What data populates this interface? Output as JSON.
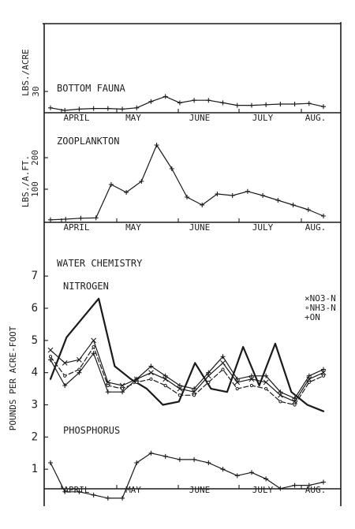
{
  "colors": {
    "ink": "#1a1a1a",
    "paper": "#ffffff"
  },
  "chart_data": [
    {
      "type": "line",
      "title": "BOTTOM FAUNA",
      "ylabel": "LBS./ACRE",
      "yticks": [
        30
      ],
      "ylim": [
        0,
        50
      ],
      "months": [
        "APRIL",
        "MAY",
        "JUNE",
        "JULY",
        "AUG."
      ],
      "x": [
        0,
        1,
        2,
        3,
        4,
        5,
        6,
        7,
        8,
        9,
        10,
        11,
        12,
        13,
        14,
        15,
        16,
        17,
        18,
        19
      ],
      "series": [
        {
          "values": [
            4,
            0,
            2,
            3,
            3,
            2,
            4,
            14,
            22,
            12,
            16,
            16,
            12,
            8,
            8,
            9,
            10,
            10,
            11,
            6
          ],
          "marker": "plus",
          "style": "solid"
        }
      ]
    },
    {
      "type": "line",
      "title": "ZOOPLANKTON",
      "ylabel": "LBS./A.FT.",
      "yticks": [
        100,
        200
      ],
      "ylim": [
        0,
        250
      ],
      "months": [
        "APRIL",
        "MAY",
        "JUNE",
        "JULY",
        "AUG."
      ],
      "x": [
        0,
        1,
        2,
        3,
        4,
        5,
        6,
        7,
        8,
        9,
        10,
        11,
        12,
        13,
        14,
        15,
        16,
        17,
        18
      ],
      "series": [
        {
          "values": [
            3,
            5,
            8,
            9,
            115,
            90,
            125,
            240,
            165,
            75,
            50,
            85,
            80,
            93,
            80,
            65,
            50,
            35,
            15
          ],
          "marker": "plus",
          "style": "solid"
        }
      ]
    },
    {
      "type": "line",
      "title": "WATER CHEMISTRY",
      "ylabel": "POUNDS PER ACRE-FOOT",
      "yticks": [
        1,
        2,
        3,
        4,
        5,
        6,
        7
      ],
      "ylim": [
        0,
        7.2
      ],
      "months": [
        "APRIL",
        "MAY",
        "JUNE",
        "JULY",
        "AUG."
      ],
      "subtitles": [
        "NITROGEN",
        "PHOSPHORUS"
      ],
      "legend": [
        "×NO3-N",
        "∘NH3-N",
        "+ON"
      ],
      "legend_position": "right",
      "series": [
        {
          "x": [
            0,
            1,
            2,
            3,
            4,
            5,
            6,
            7,
            8,
            9,
            10,
            11,
            12,
            13,
            14,
            15,
            16,
            17
          ],
          "values": [
            3.8,
            5.1,
            5.7,
            6.3,
            4.2,
            3.8,
            3.5,
            3.0,
            3.1,
            4.3,
            3.5,
            3.4,
            4.8,
            3.6,
            4.9,
            3.4,
            3.0,
            2.8
          ],
          "marker": "none",
          "style": "heavy"
        },
        {
          "x": [
            0,
            1,
            2,
            3,
            4,
            5,
            6,
            7,
            8,
            9,
            10,
            11,
            12,
            13,
            14,
            15,
            16,
            17,
            18,
            19
          ],
          "values": [
            4.7,
            4.3,
            4.4,
            5.0,
            3.7,
            3.6,
            3.8,
            4.0,
            3.8,
            3.5,
            3.4,
            3.9,
            4.3,
            3.7,
            3.8,
            3.7,
            3.3,
            3.1,
            3.8,
            4.0
          ],
          "marker": "x",
          "style": "solid"
        },
        {
          "x": [
            0,
            1,
            2,
            3,
            4,
            5,
            6,
            7,
            8,
            9,
            10,
            11,
            12,
            13,
            14,
            15,
            16,
            17,
            18,
            19
          ],
          "values": [
            4.5,
            3.9,
            4.1,
            4.8,
            3.6,
            3.5,
            3.7,
            3.8,
            3.6,
            3.3,
            3.3,
            3.7,
            4.1,
            3.5,
            3.6,
            3.5,
            3.1,
            3.0,
            3.7,
            3.9
          ],
          "marker": "circle",
          "style": "dashed"
        },
        {
          "x": [
            0,
            1,
            2,
            3,
            4,
            5,
            6,
            7,
            8,
            9,
            10,
            11,
            12,
            13,
            14,
            15,
            16,
            17,
            18,
            19
          ],
          "values": [
            4.4,
            3.6,
            4.0,
            4.6,
            3.4,
            3.4,
            3.8,
            4.2,
            3.9,
            3.6,
            3.5,
            4.0,
            4.5,
            3.8,
            3.9,
            3.9,
            3.4,
            3.2,
            3.9,
            4.1
          ],
          "marker": "plus",
          "style": "solid"
        },
        {
          "x": [
            0,
            1,
            2,
            3,
            4,
            5,
            6,
            7,
            8,
            9,
            10,
            11,
            12,
            13,
            14,
            15,
            16,
            17,
            18,
            19
          ],
          "values": [
            1.2,
            0.3,
            0.3,
            0.2,
            0.1,
            0.1,
            1.2,
            1.5,
            1.4,
            1.3,
            1.3,
            1.2,
            1.0,
            0.8,
            0.9,
            0.7,
            0.4,
            0.5,
            0.5,
            0.6
          ],
          "marker": "plus",
          "style": "solid"
        }
      ]
    }
  ]
}
